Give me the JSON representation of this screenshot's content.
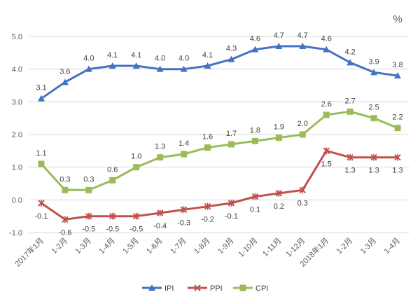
{
  "chart_data": {
    "type": "line",
    "unit_label": "%",
    "categories": [
      "2017年1月",
      "1-2月",
      "1-3月",
      "1-4月",
      "1-5月",
      "1-6月",
      "1-7月",
      "1-8月",
      "1-9月",
      "1-10月",
      "1-11月",
      "1-12月",
      "2018年1月",
      "1-2月",
      "1-3月",
      "1-4月"
    ],
    "ylim": [
      -1.0,
      5.0
    ],
    "yticks": [
      "5.0",
      "4.0",
      "3.0",
      "2.0",
      "1.0",
      "0.0",
      "-1.0"
    ],
    "ytick_values": [
      5,
      4,
      3,
      2,
      1,
      0,
      -1
    ],
    "grid": true,
    "legend": "bottom",
    "series": [
      {
        "name": "IPI",
        "color": "#4472C4",
        "marker": "triangle",
        "label_position": "above",
        "values": [
          3.1,
          3.6,
          4.0,
          4.1,
          4.1,
          4.0,
          4.0,
          4.1,
          4.3,
          4.6,
          4.7,
          4.7,
          4.6,
          4.2,
          3.9,
          3.8
        ],
        "labels": [
          "3.1",
          "3.6",
          "4.0",
          "4.1",
          "4.1",
          "4.0",
          "4.0",
          "4.1",
          "4.3",
          "4.6",
          "4.7",
          "4.7",
          "4.6",
          "4.2",
          "3.9",
          "3.8"
        ]
      },
      {
        "name": "PPI",
        "color": "#C0504D",
        "marker": "cross",
        "label_position": "below",
        "values": [
          -0.1,
          -0.6,
          -0.5,
          -0.5,
          -0.5,
          -0.4,
          -0.3,
          -0.2,
          -0.1,
          0.1,
          0.2,
          0.3,
          1.5,
          1.3,
          1.3,
          1.3
        ],
        "labels": [
          "-0.1",
          "-0.6",
          "-0.5",
          "-0.5",
          "-0.5",
          "-0.4",
          "-0.3",
          "-0.2",
          "-0.1",
          "0.1",
          "0.2",
          "0.3",
          "1.5",
          "1.3",
          "1.3",
          "1.3"
        ]
      },
      {
        "name": "CPI",
        "color": "#9BBB59",
        "marker": "square",
        "label_position": "above",
        "values": [
          1.1,
          0.3,
          0.3,
          0.6,
          1.0,
          1.3,
          1.4,
          1.6,
          1.7,
          1.8,
          1.9,
          2.0,
          2.6,
          2.7,
          2.5,
          2.2
        ],
        "labels": [
          "1.1",
          "0.3",
          "0.3",
          "0.6",
          "1.0",
          "1.3",
          "1.4",
          "1.6",
          "1.7",
          "1.8",
          "1.9",
          "2.0",
          "2.6",
          "2.7",
          "2.5",
          "2.2"
        ]
      }
    ]
  }
}
